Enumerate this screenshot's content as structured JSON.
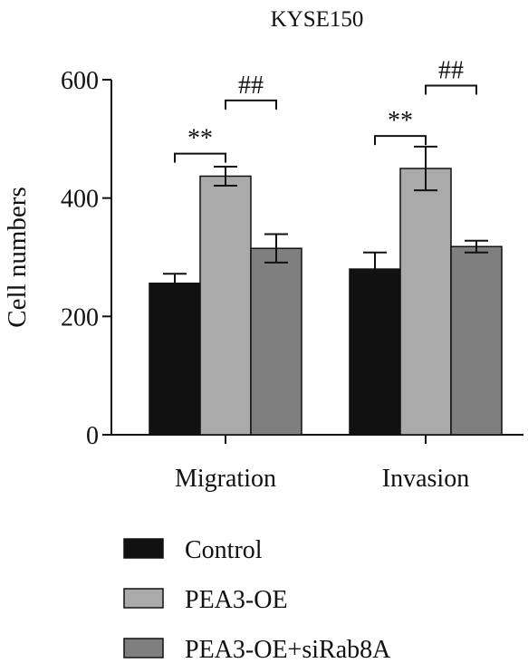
{
  "chart_data": {
    "type": "bar",
    "title": "KYSE150",
    "xlabel": "",
    "ylabel": "Cell numbers",
    "categories": [
      "Migration",
      "Invasion"
    ],
    "ylim": [
      0,
      600
    ],
    "yticks": [
      0,
      200,
      400,
      600
    ],
    "grid": false,
    "legend_position": "bottom",
    "series": [
      {
        "name": "Control",
        "color": "#111111",
        "values": [
          256,
          280
        ],
        "errors": [
          16,
          28
        ]
      },
      {
        "name": "PEA3-OE",
        "color": "#aaaaaa",
        "values": [
          437,
          450
        ],
        "errors": [
          16,
          37
        ]
      },
      {
        "name": "PEA3-OE+siRab8A",
        "color": "#7f7f7f",
        "values": [
          315,
          318
        ],
        "errors": [
          24,
          10
        ]
      }
    ],
    "annotations": [
      {
        "category": 0,
        "from_series": 0,
        "to_series": 1,
        "label": "**",
        "y": 475
      },
      {
        "category": 0,
        "from_series": 1,
        "to_series": 2,
        "label": "##",
        "y": 565
      },
      {
        "category": 1,
        "from_series": 0,
        "to_series": 1,
        "label": "**",
        "y": 505
      },
      {
        "category": 1,
        "from_series": 1,
        "to_series": 2,
        "label": "##",
        "y": 590
      }
    ]
  }
}
